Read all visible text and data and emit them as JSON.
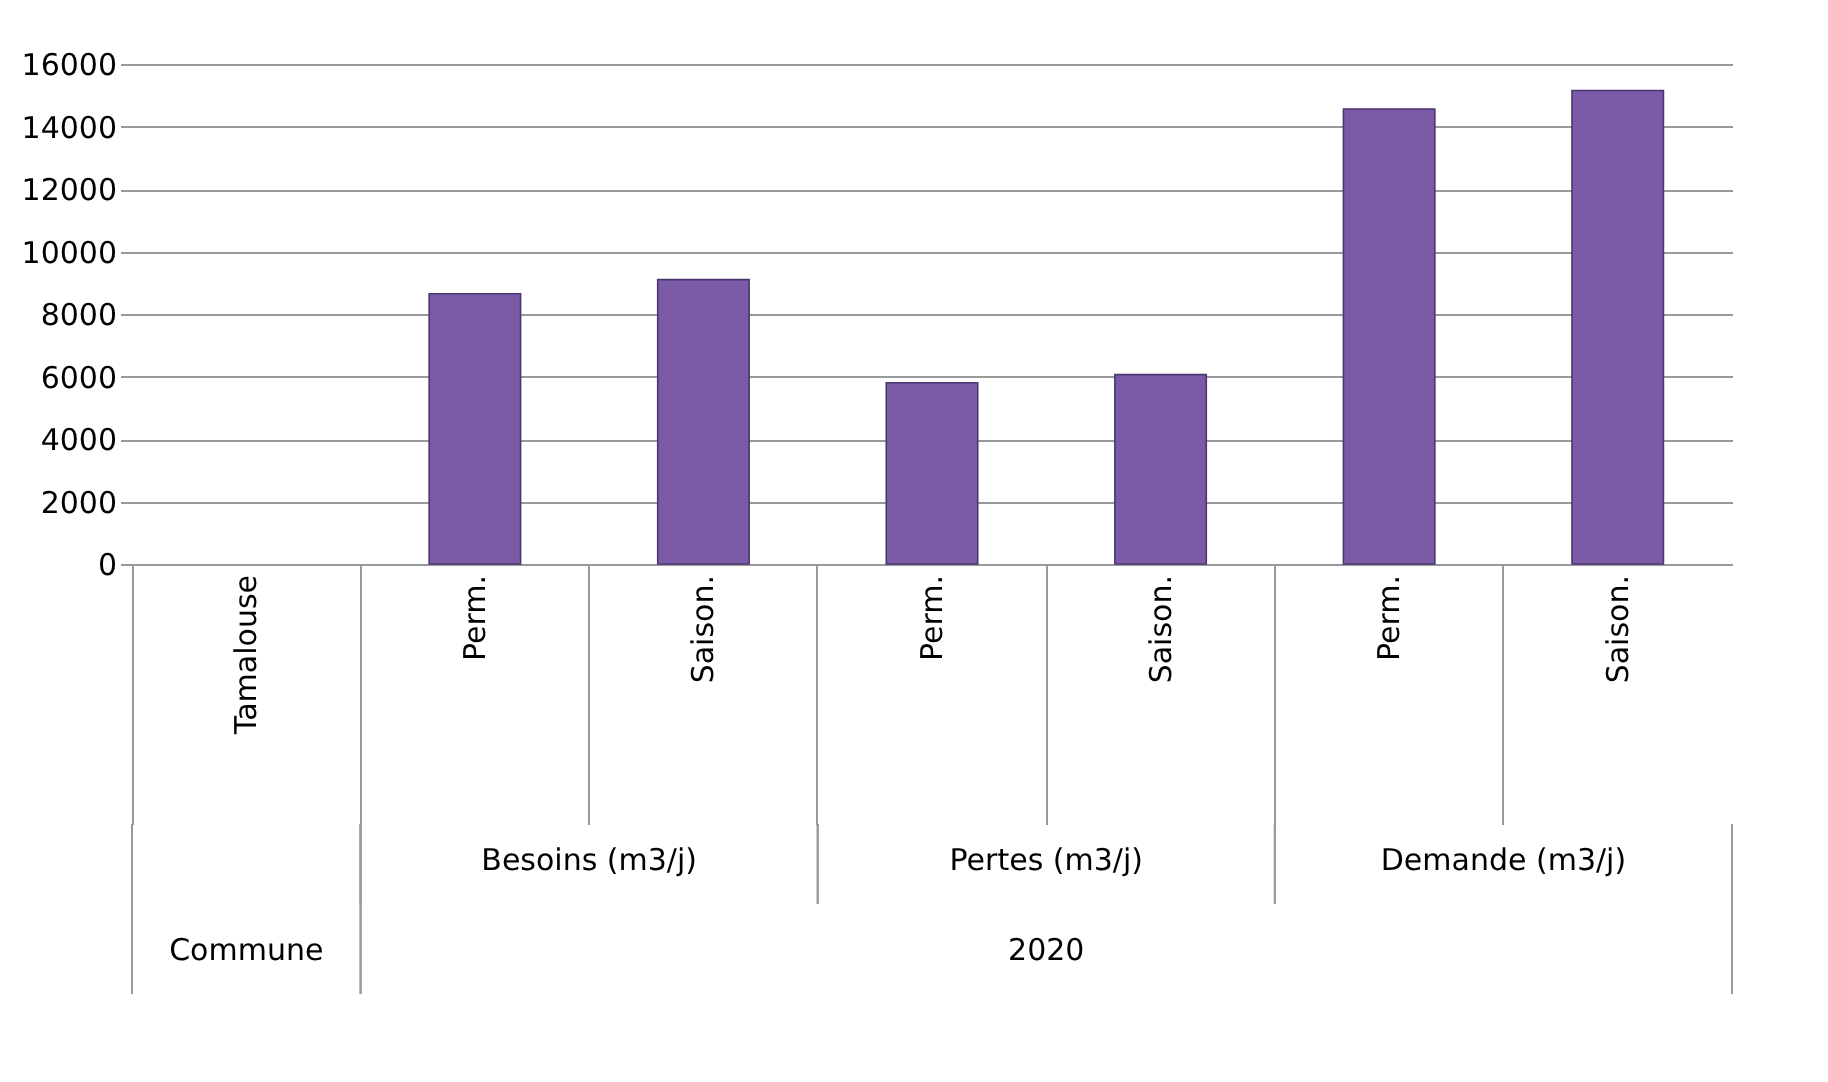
{
  "chart_data": {
    "type": "bar",
    "categories": [
      "Tamalouse",
      "Perm.",
      "Saison.",
      "Perm.",
      "Saison.",
      "Perm.",
      "Saison."
    ],
    "values": [
      null,
      8650,
      9100,
      5800,
      6060,
      14560,
      15150
    ],
    "color": "#7b5ba8",
    "ylim": [
      0,
      16000
    ],
    "yticks": [
      0,
      2000,
      4000,
      6000,
      8000,
      10000,
      12000,
      14000,
      16000
    ],
    "grid": "y",
    "annotations": [
      "Besoins (m3/j)",
      "Pertes (m3/j)",
      "Demande (m3/j)",
      "Commune",
      "2020"
    ]
  }
}
